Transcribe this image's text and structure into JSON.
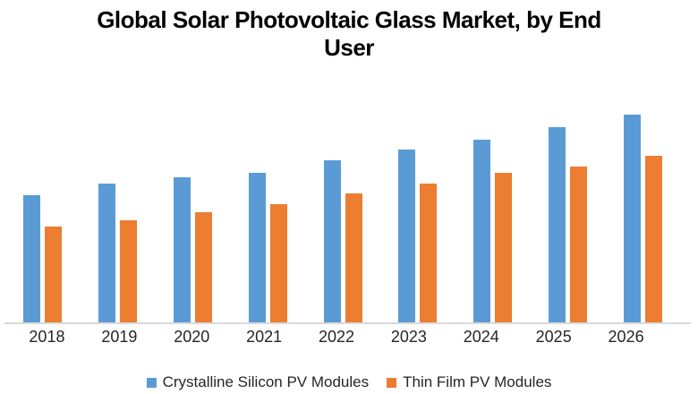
{
  "title": {
    "line1": "Global Solar Photovoltaic Glass Market, by End",
    "line2": "User"
  },
  "chart_data": {
    "type": "bar",
    "title": "Global Solar Photovoltaic Glass Market, by End User",
    "xlabel": "",
    "ylabel": "",
    "unit": "relative index (2026 Crystalline Silicon = 100); y-axis unlabeled in source",
    "ylim": [
      0,
      112
    ],
    "grid": false,
    "legend_position": "bottom",
    "axis_line_color": "#d9d9d9",
    "categories": [
      "2018",
      "2019",
      "2020",
      "2021",
      "2022",
      "2023",
      "2024",
      "2025",
      "2026"
    ],
    "series": [
      {
        "key": "crystalline",
        "name": "Crystalline Silicon PV Modules",
        "color": "#5b9bd5",
        "values": [
          61,
          67,
          70,
          72,
          78,
          83,
          88,
          94,
          100
        ]
      },
      {
        "key": "thinfilm",
        "name": "Thin Film PV Modules",
        "color": "#ed7d31",
        "values": [
          46,
          49,
          53,
          57,
          62,
          67,
          72,
          75,
          80
        ]
      }
    ]
  }
}
